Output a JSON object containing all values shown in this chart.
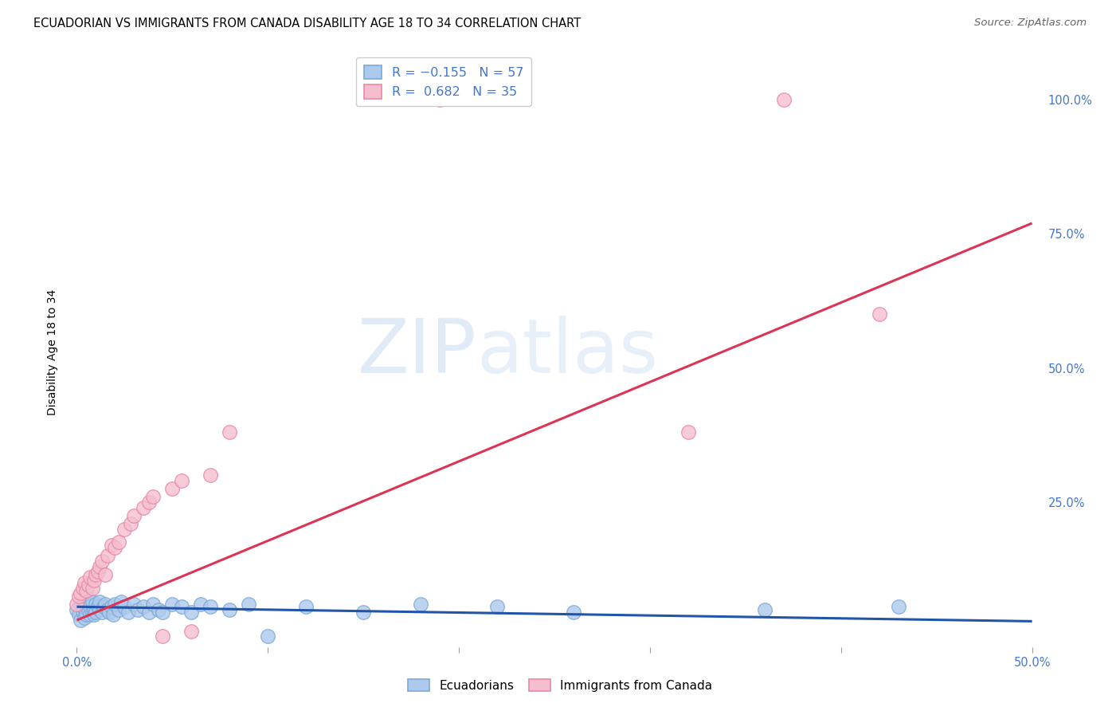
{
  "title": "ECUADORIAN VS IMMIGRANTS FROM CANADA DISABILITY AGE 18 TO 34 CORRELATION CHART",
  "source": "Source: ZipAtlas.com",
  "ylabel_label": "Disability Age 18 to 34",
  "watermark_zip": "ZIP",
  "watermark_atlas": "atlas",
  "legend_entry1_r": "R = -0.155",
  "legend_entry1_n": "N = 57",
  "legend_entry2_r": "R =  0.682",
  "legend_entry2_n": "N = 35",
  "blue_face": "#adc9eb",
  "blue_edge": "#7aaad8",
  "pink_face": "#f5bece",
  "pink_edge": "#e888a8",
  "blue_line": "#2255aa",
  "pink_line": "#dd3355",
  "tick_color": "#4477cc",
  "xlim": [
    0.0,
    0.5
  ],
  "ylim": [
    -0.02,
    1.08
  ],
  "blue_line_x": [
    0.0,
    0.5
  ],
  "blue_line_y": [
    0.055,
    0.028
  ],
  "pink_line_x": [
    0.0,
    0.5
  ],
  "pink_line_y": [
    0.03,
    0.77
  ],
  "ecu_x": [
    0.0,
    0.001,
    0.002,
    0.002,
    0.003,
    0.003,
    0.004,
    0.004,
    0.005,
    0.005,
    0.006,
    0.006,
    0.007,
    0.007,
    0.008,
    0.008,
    0.009,
    0.009,
    0.01,
    0.01,
    0.011,
    0.012,
    0.012,
    0.013,
    0.014,
    0.015,
    0.016,
    0.017,
    0.018,
    0.019,
    0.02,
    0.022,
    0.023,
    0.025,
    0.027,
    0.03,
    0.032,
    0.035,
    0.038,
    0.04,
    0.043,
    0.045,
    0.05,
    0.055,
    0.06,
    0.065,
    0.07,
    0.08,
    0.09,
    0.1,
    0.12,
    0.15,
    0.18,
    0.22,
    0.26,
    0.36,
    0.43
  ],
  "ecu_y": [
    0.05,
    0.04,
    0.06,
    0.03,
    0.045,
    0.055,
    0.035,
    0.065,
    0.04,
    0.06,
    0.05,
    0.07,
    0.04,
    0.055,
    0.045,
    0.065,
    0.05,
    0.04,
    0.06,
    0.045,
    0.055,
    0.05,
    0.065,
    0.045,
    0.055,
    0.06,
    0.05,
    0.045,
    0.055,
    0.04,
    0.06,
    0.05,
    0.065,
    0.055,
    0.045,
    0.06,
    0.05,
    0.055,
    0.045,
    0.06,
    0.05,
    0.045,
    0.06,
    0.055,
    0.045,
    0.06,
    0.055,
    0.05,
    0.06,
    0.0,
    0.055,
    0.045,
    0.06,
    0.055,
    0.045,
    0.05,
    0.055
  ],
  "can_x": [
    0.0,
    0.001,
    0.002,
    0.003,
    0.004,
    0.005,
    0.006,
    0.007,
    0.008,
    0.009,
    0.01,
    0.011,
    0.012,
    0.013,
    0.015,
    0.016,
    0.018,
    0.02,
    0.022,
    0.025,
    0.028,
    0.03,
    0.035,
    0.038,
    0.04,
    0.045,
    0.05,
    0.055,
    0.06,
    0.07,
    0.08,
    0.19,
    0.32,
    0.37,
    0.42
  ],
  "can_y": [
    0.06,
    0.075,
    0.08,
    0.09,
    0.1,
    0.085,
    0.095,
    0.11,
    0.09,
    0.105,
    0.115,
    0.12,
    0.13,
    0.14,
    0.115,
    0.15,
    0.17,
    0.165,
    0.175,
    0.2,
    0.21,
    0.225,
    0.24,
    0.25,
    0.26,
    0.0,
    0.275,
    0.29,
    0.01,
    0.3,
    0.38,
    1.0,
    0.38,
    1.0,
    0.6
  ]
}
